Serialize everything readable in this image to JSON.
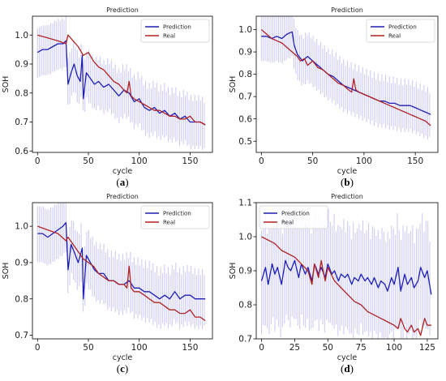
{
  "chart_data": [
    {
      "panel_label": "(a)",
      "type": "line",
      "title": "Prediction",
      "xlabel": "cycle",
      "ylabel": "SOH",
      "xlim": [
        -5,
        172
      ],
      "ylim": [
        0.595,
        1.065
      ],
      "xticks": [
        0,
        50,
        100,
        150
      ],
      "yticks": [
        0.6,
        0.7,
        0.8,
        0.9,
        1.0
      ],
      "grid": false,
      "legend": "top-right",
      "band_halfwidth": 0.095,
      "series": [
        {
          "name": "Prediction",
          "color": "#1f1fb4",
          "x": [
            0,
            5,
            10,
            15,
            20,
            25,
            28,
            30,
            33,
            36,
            39,
            42,
            44,
            45,
            48,
            52,
            56,
            60,
            65,
            70,
            75,
            80,
            85,
            90,
            95,
            100,
            105,
            110,
            115,
            120,
            125,
            130,
            135,
            140,
            145,
            150,
            155,
            160,
            165
          ],
          "y": [
            0.94,
            0.95,
            0.95,
            0.96,
            0.97,
            0.97,
            0.98,
            0.83,
            0.87,
            0.9,
            0.86,
            0.84,
            0.93,
            0.78,
            0.87,
            0.85,
            0.83,
            0.84,
            0.82,
            0.83,
            0.81,
            0.79,
            0.81,
            0.8,
            0.77,
            0.78,
            0.75,
            0.74,
            0.75,
            0.73,
            0.74,
            0.72,
            0.73,
            0.71,
            0.72,
            0.7,
            0.7,
            0.7,
            0.69
          ]
        },
        {
          "name": "Real",
          "color": "#b22222",
          "x": [
            0,
            10,
            20,
            28,
            30,
            35,
            40,
            45,
            50,
            55,
            60,
            65,
            70,
            75,
            80,
            85,
            88,
            90,
            92,
            95,
            100,
            105,
            110,
            115,
            120,
            125,
            130,
            135,
            140,
            145,
            150,
            155,
            160,
            165
          ],
          "y": [
            1.0,
            0.99,
            0.98,
            0.97,
            1.0,
            0.98,
            0.96,
            0.93,
            0.94,
            0.91,
            0.89,
            0.88,
            0.86,
            0.84,
            0.83,
            0.81,
            0.8,
            0.84,
            0.79,
            0.78,
            0.77,
            0.76,
            0.75,
            0.74,
            0.74,
            0.73,
            0.72,
            0.72,
            0.71,
            0.71,
            0.72,
            0.7,
            0.7,
            0.69
          ]
        }
      ]
    },
    {
      "panel_label": "(b)",
      "type": "line",
      "title": "Prediction",
      "xlabel": "cycle",
      "ylabel": "SOH",
      "xlim": [
        -5,
        172
      ],
      "ylim": [
        0.45,
        1.06
      ],
      "xticks": [
        0,
        50,
        100,
        150
      ],
      "yticks": [
        0.5,
        0.6,
        0.7,
        0.8,
        0.9,
        1.0
      ],
      "grid": false,
      "legend": "top-right",
      "band_halfwidth": 0.12,
      "series": [
        {
          "name": "Prediction",
          "color": "#1f1fb4",
          "x": [
            0,
            5,
            10,
            15,
            20,
            25,
            30,
            32,
            35,
            40,
            45,
            50,
            55,
            60,
            65,
            70,
            75,
            80,
            85,
            90,
            95,
            100,
            105,
            110,
            115,
            120,
            125,
            130,
            135,
            140,
            145,
            150,
            155,
            160,
            165
          ],
          "y": [
            0.97,
            0.97,
            0.96,
            0.97,
            0.96,
            0.98,
            0.99,
            0.93,
            0.89,
            0.86,
            0.88,
            0.86,
            0.84,
            0.82,
            0.8,
            0.79,
            0.77,
            0.75,
            0.74,
            0.73,
            0.72,
            0.71,
            0.7,
            0.69,
            0.68,
            0.68,
            0.67,
            0.67,
            0.66,
            0.66,
            0.66,
            0.65,
            0.64,
            0.63,
            0.62
          ]
        },
        {
          "name": "Real",
          "color": "#b22222",
          "x": [
            0,
            5,
            10,
            15,
            20,
            25,
            30,
            35,
            38,
            42,
            45,
            50,
            55,
            60,
            65,
            70,
            75,
            80,
            85,
            88,
            90,
            92,
            95,
            100,
            105,
            110,
            115,
            120,
            125,
            130,
            135,
            140,
            145,
            150,
            155,
            160,
            165
          ],
          "y": [
            1.0,
            0.98,
            0.96,
            0.95,
            0.94,
            0.92,
            0.9,
            0.88,
            0.86,
            0.87,
            0.84,
            0.86,
            0.83,
            0.82,
            0.8,
            0.78,
            0.76,
            0.75,
            0.73,
            0.72,
            0.78,
            0.73,
            0.72,
            0.71,
            0.7,
            0.69,
            0.68,
            0.67,
            0.66,
            0.65,
            0.64,
            0.63,
            0.62,
            0.61,
            0.6,
            0.59,
            0.57
          ]
        }
      ]
    },
    {
      "panel_label": "(c)",
      "type": "line",
      "title": "Prediction",
      "xlabel": "cycle",
      "ylabel": "SOH",
      "xlim": [
        -5,
        172
      ],
      "ylim": [
        0.69,
        1.065
      ],
      "xticks": [
        0,
        50,
        100,
        150
      ],
      "yticks": [
        0.7,
        0.8,
        0.9,
        1.0
      ],
      "grid": false,
      "legend": "top-right",
      "band_halfwidth": 0.085,
      "series": [
        {
          "name": "Prediction",
          "color": "#1f1fb4",
          "x": [
            0,
            5,
            10,
            15,
            20,
            25,
            28,
            30,
            33,
            36,
            40,
            44,
            45,
            48,
            52,
            56,
            60,
            65,
            70,
            75,
            80,
            85,
            90,
            95,
            100,
            105,
            110,
            115,
            120,
            125,
            130,
            135,
            140,
            145,
            150,
            155,
            160,
            165
          ],
          "y": [
            0.98,
            0.98,
            0.97,
            0.98,
            0.99,
            1.0,
            1.01,
            0.88,
            0.95,
            0.93,
            0.9,
            0.94,
            0.8,
            0.92,
            0.9,
            0.88,
            0.87,
            0.87,
            0.85,
            0.85,
            0.84,
            0.84,
            0.85,
            0.83,
            0.83,
            0.82,
            0.82,
            0.81,
            0.8,
            0.81,
            0.8,
            0.82,
            0.8,
            0.81,
            0.81,
            0.8,
            0.8,
            0.8
          ]
        },
        {
          "name": "Real",
          "color": "#b22222",
          "x": [
            0,
            10,
            20,
            28,
            30,
            35,
            40,
            45,
            50,
            55,
            60,
            65,
            70,
            75,
            80,
            85,
            88,
            90,
            92,
            95,
            100,
            105,
            110,
            115,
            120,
            125,
            130,
            135,
            140,
            145,
            150,
            155,
            160,
            165
          ],
          "y": [
            1.0,
            0.99,
            0.98,
            0.96,
            0.97,
            0.95,
            0.93,
            0.91,
            0.9,
            0.89,
            0.87,
            0.86,
            0.85,
            0.85,
            0.84,
            0.84,
            0.83,
            0.89,
            0.83,
            0.82,
            0.82,
            0.81,
            0.8,
            0.79,
            0.79,
            0.78,
            0.77,
            0.77,
            0.76,
            0.76,
            0.77,
            0.75,
            0.75,
            0.74
          ]
        }
      ]
    },
    {
      "panel_label": "(d)",
      "type": "line",
      "title": "Prediction",
      "xlabel": "cycle",
      "ylabel": "SOH",
      "xlim": [
        -4,
        133
      ],
      "ylim": [
        0.7,
        1.1
      ],
      "xticks": [
        0,
        25,
        50,
        75,
        100,
        125
      ],
      "yticks": [
        0.7,
        0.8,
        0.9,
        1.0,
        1.1
      ],
      "grid": false,
      "legend": "top-left",
      "band_halfwidth": 0.17,
      "series": [
        {
          "name": "Prediction",
          "color": "#1f1fb4",
          "x": [
            0,
            3,
            5,
            8,
            10,
            12,
            15,
            18,
            20,
            22,
            25,
            28,
            30,
            33,
            35,
            38,
            40,
            43,
            45,
            48,
            50,
            53,
            55,
            58,
            60,
            63,
            65,
            68,
            70,
            73,
            75,
            78,
            80,
            83,
            85,
            88,
            90,
            93,
            95,
            98,
            100,
            103,
            105,
            108,
            110,
            113,
            115,
            118,
            120,
            123,
            125,
            128
          ],
          "y": [
            0.87,
            0.91,
            0.86,
            0.92,
            0.89,
            0.91,
            0.86,
            0.93,
            0.91,
            0.9,
            0.93,
            0.88,
            0.92,
            0.89,
            0.91,
            0.87,
            0.92,
            0.89,
            0.91,
            0.88,
            0.92,
            0.89,
            0.9,
            0.87,
            0.89,
            0.88,
            0.89,
            0.86,
            0.88,
            0.87,
            0.89,
            0.87,
            0.88,
            0.86,
            0.88,
            0.85,
            0.87,
            0.86,
            0.84,
            0.88,
            0.86,
            0.91,
            0.84,
            0.89,
            0.86,
            0.88,
            0.85,
            0.87,
            0.91,
            0.88,
            0.9,
            0.83
          ]
        },
        {
          "name": "Real",
          "color": "#b22222",
          "x": [
            0,
            5,
            10,
            15,
            20,
            25,
            30,
            35,
            38,
            40,
            43,
            45,
            48,
            50,
            55,
            60,
            65,
            70,
            75,
            80,
            85,
            90,
            95,
            100,
            103,
            105,
            108,
            110,
            113,
            115,
            118,
            120,
            123,
            125,
            128
          ],
          "y": [
            1.0,
            0.99,
            0.98,
            0.96,
            0.95,
            0.94,
            0.92,
            0.9,
            0.86,
            0.92,
            0.88,
            0.93,
            0.87,
            0.91,
            0.87,
            0.85,
            0.83,
            0.81,
            0.8,
            0.78,
            0.77,
            0.76,
            0.75,
            0.74,
            0.73,
            0.76,
            0.73,
            0.72,
            0.74,
            0.72,
            0.73,
            0.71,
            0.76,
            0.74,
            0.74
          ]
        }
      ]
    }
  ]
}
